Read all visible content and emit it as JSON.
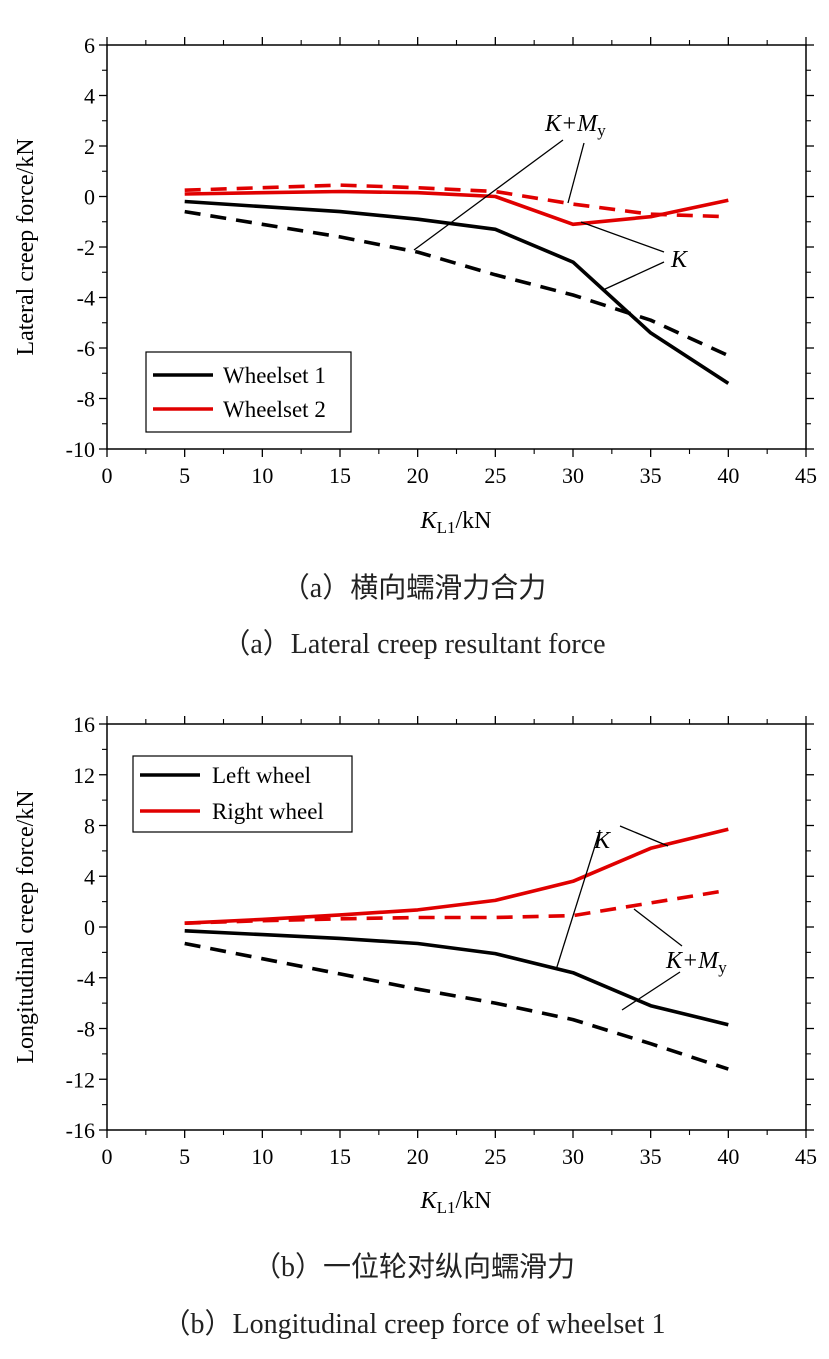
{
  "chart_data": [
    {
      "type": "line",
      "ylabel": "Lateral creep force/kN",
      "xlabel_main": "K",
      "xlabel_sub": "L1",
      "xlabel_unit": "/kN",
      "xlim": [
        0,
        45
      ],
      "ylim": [
        -10,
        6
      ],
      "xticks": [
        0,
        5,
        10,
        15,
        20,
        25,
        30,
        35,
        40,
        45
      ],
      "yticks": [
        -10,
        -8,
        -6,
        -4,
        -2,
        0,
        2,
        4,
        6
      ],
      "x": [
        5,
        10,
        15,
        20,
        25,
        30,
        35,
        40
      ],
      "legend": [
        {
          "label": "Wheelset 1",
          "color": "#000000"
        },
        {
          "label": "Wheelset 2",
          "color": "#e00000"
        }
      ],
      "series": [
        {
          "name": "Wheelset 1",
          "style": "solid",
          "color": "#000000",
          "values": [
            -0.2,
            -0.4,
            -0.6,
            -0.9,
            -1.3,
            -2.6,
            -5.4,
            -7.4
          ]
        },
        {
          "name": "Wheelset 1",
          "style": "dashed",
          "color": "#000000",
          "values": [
            -0.6,
            -1.1,
            -1.6,
            -2.2,
            -3.1,
            -3.9,
            -4.9,
            -6.3
          ]
        },
        {
          "name": "Wheelset 2",
          "style": "solid",
          "color": "#e00000",
          "values": [
            0.1,
            0.15,
            0.2,
            0.15,
            0.0,
            -1.1,
            -0.8,
            -0.15
          ]
        },
        {
          "name": "Wheelset 2",
          "style": "dashed",
          "color": "#e00000",
          "values": [
            0.25,
            0.35,
            0.45,
            0.35,
            0.2,
            -0.3,
            -0.7,
            -0.8
          ]
        }
      ],
      "annotations": {
        "top": {
          "main": "K+M",
          "sub": "y"
        },
        "bottom": {
          "main": "K"
        }
      },
      "caption_cn": "（a）横向蠕滑力合力",
      "caption_en": "（a）Lateral creep resultant force"
    },
    {
      "type": "line",
      "ylabel": "Longitudinal creep force/kN",
      "xlabel_main": "K",
      "xlabel_sub": "L1",
      "xlabel_unit": "/kN",
      "xlim": [
        0,
        45
      ],
      "ylim": [
        -16,
        16
      ],
      "xticks": [
        0,
        5,
        10,
        15,
        20,
        25,
        30,
        35,
        40,
        45
      ],
      "yticks": [
        -16,
        -12,
        -8,
        -4,
        0,
        4,
        8,
        12,
        16
      ],
      "x": [
        5,
        10,
        15,
        20,
        25,
        30,
        35,
        40
      ],
      "legend": [
        {
          "label": "Left wheel",
          "color": "#000000"
        },
        {
          "label": "Right wheel",
          "color": "#e00000"
        }
      ],
      "series": [
        {
          "name": "Left wheel",
          "style": "solid",
          "color": "#000000",
          "values": [
            -0.3,
            -0.6,
            -0.9,
            -1.3,
            -2.1,
            -3.6,
            -6.2,
            -7.7
          ]
        },
        {
          "name": "Left wheel",
          "style": "dashed",
          "color": "#000000",
          "values": [
            -1.3,
            -2.5,
            -3.7,
            -4.9,
            -6.0,
            -7.3,
            -9.2,
            -11.2
          ]
        },
        {
          "name": "Right wheel",
          "style": "solid",
          "color": "#e00000",
          "values": [
            0.3,
            0.6,
            0.95,
            1.35,
            2.1,
            3.6,
            6.2,
            7.7
          ]
        },
        {
          "name": "Right wheel",
          "style": "dashed",
          "color": "#e00000",
          "values": [
            0.3,
            0.5,
            0.65,
            0.75,
            0.75,
            0.9,
            1.9,
            2.9
          ]
        }
      ],
      "annotations": {
        "top": {
          "main": "K"
        },
        "bottom": {
          "main": "K+M",
          "sub": "y"
        }
      },
      "caption_cn": "（b）一位轮对纵向蠕滑力",
      "caption_en": "（b）Longitudinal creep force of wheelset 1"
    }
  ]
}
